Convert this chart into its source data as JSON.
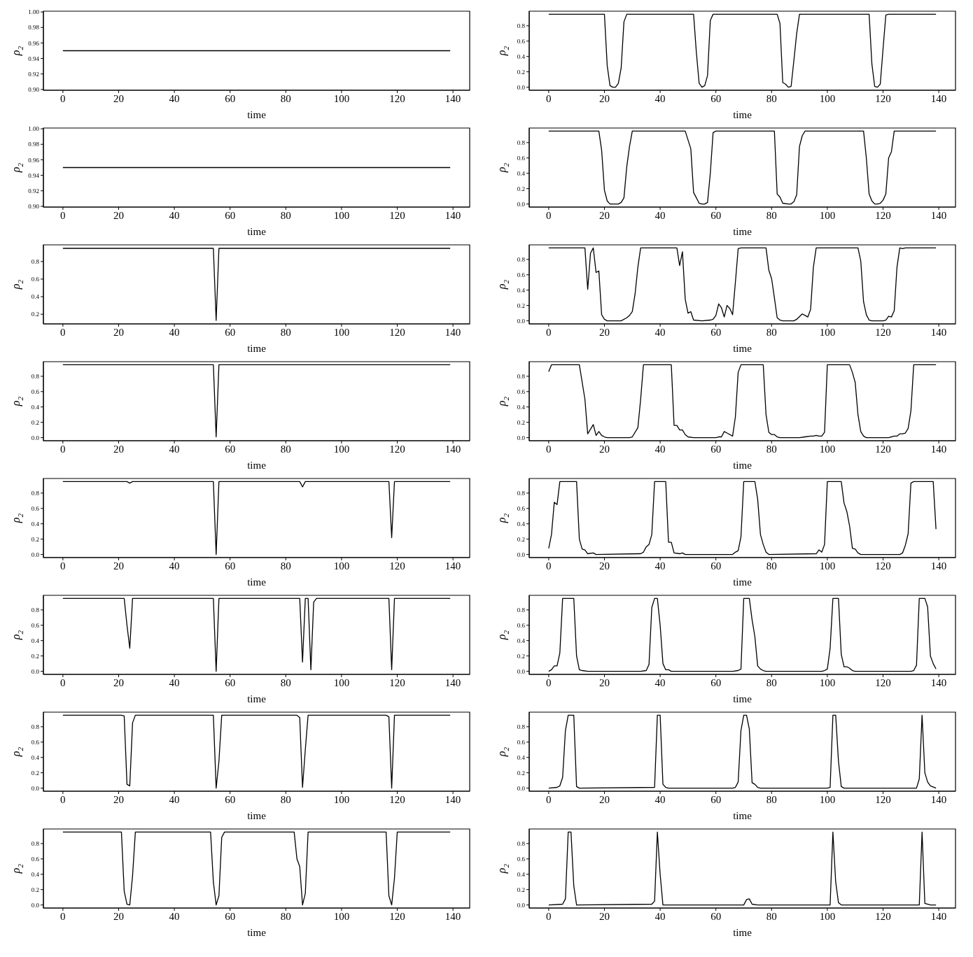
{
  "chart_data": [
    {
      "type": "line",
      "xlabel": "time",
      "ylabel": "ρ$_{2}$",
      "color": "#000000",
      "xlim": [
        -7,
        146
      ],
      "xticks": [
        0,
        20,
        40,
        60,
        80,
        100,
        120,
        140
      ],
      "ylim": [
        0.899,
        1.001
      ],
      "yticks": [
        {
          "value": 0.9,
          "label": "0.90"
        },
        0.92,
        0.94,
        0.96,
        0.98,
        {
          "value": 1,
          "label": "1.00"
        }
      ],
      "x": [
        0,
        139
      ],
      "values": [
        0.95,
        0.95
      ]
    },
    {
      "type": "line",
      "xlabel": "time",
      "ylabel": "ρ$_{2}$",
      "color": "#000000",
      "xlim": [
        -7,
        146
      ],
      "xticks": [
        0,
        20,
        40,
        60,
        80,
        100,
        120,
        140
      ],
      "ylim": [
        -0.04,
        0.99
      ],
      "yticks": [
        {
          "value": 0,
          "label": "0.0"
        },
        0.2,
        0.4,
        0.6,
        0.8
      ],
      "x": [
        0,
        20,
        21,
        22,
        23,
        24,
        25,
        26,
        27,
        28,
        52,
        53,
        54,
        55,
        56,
        57,
        58,
        59,
        82,
        83,
        84,
        85,
        86,
        87,
        88,
        89,
        90,
        115,
        116,
        117,
        118,
        119,
        120,
        121,
        122,
        139
      ],
      "values": [
        0.95,
        0.95,
        0.28,
        0.02,
        0.0,
        0.0,
        0.05,
        0.25,
        0.85,
        0.95,
        0.95,
        0.45,
        0.05,
        0.0,
        0.02,
        0.15,
        0.87,
        0.95,
        0.95,
        0.83,
        0.06,
        0.04,
        0.0,
        0.01,
        0.35,
        0.7,
        0.95,
        0.95,
        0.3,
        0.01,
        0.0,
        0.04,
        0.5,
        0.94,
        0.95,
        0.95
      ]
    },
    {
      "type": "line",
      "xlabel": "time",
      "ylabel": "ρ$_{2}$",
      "color": "#000000",
      "xlim": [
        -7,
        146
      ],
      "xticks": [
        0,
        20,
        40,
        60,
        80,
        100,
        120,
        140
      ],
      "ylim": [
        0.899,
        1.001
      ],
      "yticks": [
        {
          "value": 0.9,
          "label": "0.90"
        },
        0.92,
        0.94,
        0.96,
        0.98,
        {
          "value": 1,
          "label": "1.00"
        }
      ],
      "x": [
        0,
        139
      ],
      "values": [
        0.95,
        0.95
      ]
    },
    {
      "type": "line",
      "xlabel": "time",
      "ylabel": "ρ$_{2}$",
      "color": "#000000",
      "xlim": [
        -7,
        146
      ],
      "xticks": [
        0,
        20,
        40,
        60,
        80,
        100,
        120,
        140
      ],
      "ylim": [
        -0.04,
        0.99
      ],
      "yticks": [
        {
          "value": 0,
          "label": "0.0"
        },
        0.2,
        0.4,
        0.6,
        0.8
      ],
      "x": [
        0,
        18,
        19,
        20,
        21,
        22,
        25,
        26,
        27,
        28,
        29,
        30,
        49,
        51,
        52,
        54,
        55,
        56,
        57,
        58,
        59,
        60,
        81,
        82,
        83,
        84,
        86,
        87,
        88,
        89,
        90,
        91,
        92,
        113,
        114,
        115,
        116,
        117,
        118,
        119,
        120,
        121,
        122,
        123,
        124,
        139
      ],
      "values": [
        0.95,
        0.95,
        0.7,
        0.18,
        0.04,
        0.0,
        0.0,
        0.02,
        0.08,
        0.48,
        0.75,
        0.95,
        0.95,
        0.72,
        0.15,
        0.01,
        0.0,
        0.0,
        0.02,
        0.4,
        0.93,
        0.95,
        0.95,
        0.13,
        0.09,
        0.01,
        0.0,
        0.0,
        0.03,
        0.12,
        0.75,
        0.89,
        0.95,
        0.95,
        0.6,
        0.13,
        0.04,
        0.0,
        0.0,
        0.01,
        0.05,
        0.13,
        0.6,
        0.68,
        0.95,
        0.95
      ]
    },
    {
      "type": "line",
      "xlabel": "time",
      "ylabel": "ρ$_{2}$",
      "color": "#000000",
      "xlim": [
        -7,
        146
      ],
      "xticks": [
        0,
        20,
        40,
        60,
        80,
        100,
        120,
        140
      ],
      "ylim": [
        0.09,
        0.99
      ],
      "yticks": [
        0.2,
        0.4,
        0.6,
        0.8
      ],
      "x": [
        0,
        54,
        55,
        56,
        139
      ],
      "values": [
        0.95,
        0.95,
        0.13,
        0.95,
        0.95
      ]
    },
    {
      "type": "line",
      "xlabel": "time",
      "ylabel": "ρ$_{2}$",
      "color": "#000000",
      "xlim": [
        -7,
        146
      ],
      "xticks": [
        0,
        20,
        40,
        60,
        80,
        100,
        120,
        140
      ],
      "ylim": [
        -0.04,
        0.99
      ],
      "yticks": [
        {
          "value": 0,
          "label": "0.0"
        },
        0.2,
        0.4,
        0.6,
        0.8
      ],
      "x": [
        0,
        13,
        14,
        15,
        16,
        17,
        18,
        19,
        20,
        21,
        26,
        28,
        29,
        30,
        31,
        32,
        33,
        46,
        47,
        48,
        49,
        50,
        51,
        52,
        55,
        58,
        59,
        60,
        61,
        62,
        63,
        64,
        65,
        66,
        67,
        68,
        69,
        78,
        79,
        80,
        81,
        82,
        83,
        84,
        88,
        89,
        91,
        92,
        93,
        94,
        95,
        96,
        111,
        112,
        113,
        114,
        115,
        116,
        120,
        121,
        122,
        123,
        124,
        125,
        126,
        127,
        128,
        139
      ],
      "values": [
        0.95,
        0.95,
        0.41,
        0.88,
        0.95,
        0.63,
        0.65,
        0.08,
        0.02,
        0.0,
        0.0,
        0.04,
        0.07,
        0.12,
        0.35,
        0.7,
        0.95,
        0.95,
        0.72,
        0.9,
        0.28,
        0.1,
        0.12,
        0.01,
        0.0,
        0.01,
        0.02,
        0.07,
        0.22,
        0.17,
        0.05,
        0.2,
        0.16,
        0.08,
        0.5,
        0.94,
        0.95,
        0.95,
        0.66,
        0.55,
        0.3,
        0.04,
        0.01,
        0.0,
        0.0,
        0.02,
        0.09,
        0.07,
        0.05,
        0.15,
        0.7,
        0.95,
        0.95,
        0.78,
        0.25,
        0.08,
        0.01,
        0.0,
        0.0,
        0.01,
        0.06,
        0.05,
        0.13,
        0.7,
        0.95,
        0.94,
        0.95,
        0.95
      ]
    },
    {
      "type": "line",
      "xlabel": "time",
      "ylabel": "ρ$_{2}$",
      "color": "#000000",
      "xlim": [
        -7,
        146
      ],
      "xticks": [
        0,
        20,
        40,
        60,
        80,
        100,
        120,
        140
      ],
      "ylim": [
        -0.04,
        0.99
      ],
      "yticks": [
        {
          "value": 0,
          "label": "0.0"
        },
        0.2,
        0.4,
        0.6,
        0.8
      ],
      "x": [
        0,
        54,
        55,
        56,
        139
      ],
      "values": [
        0.95,
        0.95,
        0.01,
        0.95,
        0.95
      ]
    },
    {
      "type": "line",
      "xlabel": "time",
      "ylabel": "ρ$_{2}$",
      "color": "#000000",
      "xlim": [
        -7,
        146
      ],
      "xticks": [
        0,
        20,
        40,
        60,
        80,
        100,
        120,
        140
      ],
      "ylim": [
        -0.04,
        0.99
      ],
      "yticks": [
        {
          "value": 0,
          "label": "0.0"
        },
        0.2,
        0.4,
        0.6,
        0.8
      ],
      "x": [
        0,
        1,
        11,
        13,
        14,
        16,
        17,
        18,
        19,
        20,
        21,
        29,
        30,
        32,
        33,
        34,
        44,
        45,
        46,
        47,
        48,
        49,
        50,
        52,
        60,
        61,
        62,
        63,
        64,
        66,
        67,
        68,
        69,
        77,
        78,
        79,
        80,
        81,
        82,
        83,
        90,
        92,
        94,
        95,
        96,
        97,
        98,
        99,
        100,
        108,
        109,
        110,
        111,
        112,
        113,
        114,
        122,
        124,
        125,
        126,
        127,
        128,
        129,
        130,
        131,
        139
      ],
      "values": [
        0.86,
        0.95,
        0.95,
        0.5,
        0.05,
        0.17,
        0.03,
        0.08,
        0.03,
        0.01,
        0.0,
        0.0,
        0.01,
        0.13,
        0.5,
        0.95,
        0.95,
        0.16,
        0.16,
        0.1,
        0.1,
        0.04,
        0.01,
        0.0,
        0.0,
        0.01,
        0.01,
        0.08,
        0.06,
        0.02,
        0.27,
        0.85,
        0.95,
        0.95,
        0.3,
        0.07,
        0.04,
        0.04,
        0.01,
        0.0,
        0.0,
        0.01,
        0.02,
        0.02,
        0.03,
        0.02,
        0.02,
        0.07,
        0.95,
        0.95,
        0.85,
        0.72,
        0.3,
        0.08,
        0.02,
        0.0,
        0.0,
        0.02,
        0.02,
        0.05,
        0.05,
        0.06,
        0.12,
        0.35,
        0.95,
        0.95
      ]
    },
    {
      "type": "line",
      "xlabel": "time",
      "ylabel": "ρ$_{2}$",
      "color": "#000000",
      "xlim": [
        -7,
        146
      ],
      "xticks": [
        0,
        20,
        40,
        60,
        80,
        100,
        120,
        140
      ],
      "ylim": [
        -0.04,
        0.99
      ],
      "yticks": [
        {
          "value": 0,
          "label": "0.0"
        },
        0.2,
        0.4,
        0.6,
        0.8
      ],
      "x": [
        0,
        23,
        24,
        25,
        54,
        55,
        56,
        85,
        86,
        87,
        117,
        118,
        119,
        139
      ],
      "values": [
        0.95,
        0.95,
        0.93,
        0.95,
        0.95,
        0.0,
        0.95,
        0.95,
        0.88,
        0.95,
        0.95,
        0.22,
        0.95,
        0.95
      ]
    },
    {
      "type": "line",
      "xlabel": "time",
      "ylabel": "ρ$_{2}$",
      "color": "#000000",
      "xlim": [
        -7,
        146
      ],
      "xticks": [
        0,
        20,
        40,
        60,
        80,
        100,
        120,
        140
      ],
      "ylim": [
        -0.04,
        0.99
      ],
      "yticks": [
        {
          "value": 0,
          "label": "0.0"
        },
        0.2,
        0.4,
        0.6,
        0.8
      ],
      "x": [
        0,
        1,
        2,
        3,
        4,
        10,
        11,
        12,
        13,
        14,
        16,
        17,
        33,
        34,
        35,
        36,
        37,
        38,
        42,
        43,
        44,
        45,
        47,
        48,
        49,
        66,
        67,
        68,
        69,
        70,
        74,
        75,
        76,
        77,
        78,
        79,
        96,
        97,
        98,
        99,
        100,
        105,
        106,
        107,
        108,
        109,
        110,
        111,
        112,
        126,
        127,
        128,
        129,
        130,
        131,
        138,
        139
      ],
      "values": [
        0.08,
        0.26,
        0.68,
        0.65,
        0.95,
        0.95,
        0.2,
        0.07,
        0.06,
        0.01,
        0.02,
        0.0,
        0.01,
        0.03,
        0.1,
        0.13,
        0.26,
        0.95,
        0.95,
        0.16,
        0.16,
        0.02,
        0.01,
        0.02,
        0.0,
        0.0,
        0.03,
        0.05,
        0.23,
        0.95,
        0.95,
        0.72,
        0.26,
        0.13,
        0.03,
        0.0,
        0.01,
        0.06,
        0.03,
        0.13,
        0.95,
        0.95,
        0.67,
        0.56,
        0.37,
        0.08,
        0.07,
        0.02,
        0.0,
        0.0,
        0.02,
        0.12,
        0.27,
        0.93,
        0.95,
        0.95,
        0.33
      ]
    },
    {
      "type": "line",
      "xlabel": "time",
      "ylabel": "ρ$_{2}$",
      "color": "#000000",
      "xlim": [
        -7,
        146
      ],
      "xticks": [
        0,
        20,
        40,
        60,
        80,
        100,
        120,
        140
      ],
      "ylim": [
        -0.04,
        0.99
      ],
      "yticks": [
        {
          "value": 0,
          "label": "0.0"
        },
        0.2,
        0.4,
        0.6,
        0.8
      ],
      "x": [
        0,
        22,
        23,
        24,
        25,
        54,
        55,
        56,
        85,
        86,
        87,
        88,
        89,
        90,
        91,
        117,
        118,
        119,
        139
      ],
      "values": [
        0.95,
        0.95,
        0.6,
        0.3,
        0.95,
        0.95,
        0.0,
        0.95,
        0.95,
        0.12,
        0.95,
        0.95,
        0.02,
        0.9,
        0.95,
        0.95,
        0.02,
        0.95,
        0.95
      ]
    },
    {
      "type": "line",
      "xlabel": "time",
      "ylabel": "ρ$_{2}$",
      "color": "#000000",
      "xlim": [
        -7,
        146
      ],
      "xticks": [
        0,
        20,
        40,
        60,
        80,
        100,
        120,
        140
      ],
      "ylim": [
        -0.04,
        0.99
      ],
      "yticks": [
        {
          "value": 0,
          "label": "0.0"
        },
        0.2,
        0.4,
        0.6,
        0.8
      ],
      "x": [
        0,
        1,
        2,
        3,
        4,
        5,
        9,
        10,
        11,
        12,
        14,
        33,
        35,
        36,
        37,
        38,
        39,
        40,
        41,
        42,
        43,
        44,
        66,
        68,
        69,
        70,
        72,
        73,
        74,
        75,
        76,
        77,
        78,
        98,
        99,
        100,
        101,
        102,
        104,
        105,
        106,
        107,
        108,
        109,
        110,
        130,
        131,
        132,
        133,
        135,
        136,
        137,
        138,
        139
      ],
      "values": [
        0.0,
        0.02,
        0.07,
        0.07,
        0.24,
        0.95,
        0.95,
        0.2,
        0.02,
        0.01,
        0.0,
        0.0,
        0.01,
        0.09,
        0.83,
        0.95,
        0.95,
        0.6,
        0.1,
        0.02,
        0.02,
        0.0,
        0.0,
        0.01,
        0.03,
        0.95,
        0.95,
        0.67,
        0.45,
        0.07,
        0.03,
        0.01,
        0.0,
        0.0,
        0.01,
        0.03,
        0.3,
        0.95,
        0.95,
        0.22,
        0.06,
        0.06,
        0.04,
        0.01,
        0.0,
        0.0,
        0.01,
        0.08,
        0.95,
        0.95,
        0.84,
        0.2,
        0.1,
        0.03
      ]
    },
    {
      "type": "line",
      "xlabel": "time",
      "ylabel": "ρ$_{2}$",
      "color": "#000000",
      "xlim": [
        -7,
        146
      ],
      "xticks": [
        0,
        20,
        40,
        60,
        80,
        100,
        120,
        140
      ],
      "ylim": [
        -0.04,
        0.99
      ],
      "yticks": [
        {
          "value": 0,
          "label": "0.0"
        },
        0.2,
        0.4,
        0.6,
        0.8
      ],
      "x": [
        0,
        21,
        22,
        23,
        24,
        25,
        26,
        54,
        55,
        56,
        57,
        84,
        85,
        86,
        87,
        88,
        116,
        117,
        118,
        119,
        139
      ],
      "values": [
        0.95,
        0.95,
        0.94,
        0.05,
        0.03,
        0.85,
        0.95,
        0.95,
        0.0,
        0.35,
        0.95,
        0.95,
        0.92,
        0.01,
        0.5,
        0.95,
        0.95,
        0.93,
        0.0,
        0.95,
        0.95
      ]
    },
    {
      "type": "line",
      "xlabel": "time",
      "ylabel": "ρ$_{2}$",
      "color": "#000000",
      "xlim": [
        -7,
        146
      ],
      "xticks": [
        0,
        20,
        40,
        60,
        80,
        100,
        120,
        140
      ],
      "ylim": [
        -0.04,
        0.99
      ],
      "yticks": [
        {
          "value": 0,
          "label": "0.0"
        },
        0.2,
        0.4,
        0.6,
        0.8
      ],
      "x": [
        0,
        3,
        4,
        5,
        6,
        7,
        9,
        10,
        11,
        38,
        39,
        40,
        41,
        42,
        43,
        66,
        67,
        68,
        69,
        70,
        71,
        72,
        73,
        74,
        75,
        76,
        100,
        101,
        102,
        103,
        104,
        105,
        106,
        132,
        133,
        134,
        135,
        136,
        137,
        139
      ],
      "values": [
        0.0,
        0.01,
        0.03,
        0.14,
        0.75,
        0.95,
        0.95,
        0.02,
        0.0,
        0.01,
        0.95,
        0.95,
        0.05,
        0.01,
        0.0,
        0.0,
        0.01,
        0.08,
        0.75,
        0.95,
        0.95,
        0.77,
        0.07,
        0.05,
        0.01,
        0.0,
        0.0,
        0.01,
        0.95,
        0.95,
        0.35,
        0.02,
        0.0,
        0.0,
        0.12,
        0.95,
        0.2,
        0.08,
        0.03,
        0.0
      ]
    },
    {
      "type": "line",
      "xlabel": "time",
      "ylabel": "ρ$_{2}$",
      "color": "#000000",
      "xlim": [
        -7,
        146
      ],
      "xticks": [
        0,
        20,
        40,
        60,
        80,
        100,
        120,
        140
      ],
      "ylim": [
        -0.04,
        0.99
      ],
      "yticks": [
        {
          "value": 0,
          "label": "0.0"
        },
        0.2,
        0.4,
        0.6,
        0.8
      ],
      "x": [
        0,
        21,
        22,
        23,
        24,
        25,
        26,
        53,
        54,
        55,
        56,
        57,
        58,
        83,
        84,
        85,
        86,
        87,
        88,
        116,
        117,
        118,
        119,
        120,
        139
      ],
      "values": [
        0.95,
        0.95,
        0.18,
        0.01,
        0.0,
        0.38,
        0.95,
        0.95,
        0.3,
        0.0,
        0.12,
        0.88,
        0.95,
        0.95,
        0.6,
        0.5,
        0.0,
        0.15,
        0.95,
        0.95,
        0.12,
        0.0,
        0.35,
        0.95,
        0.95
      ]
    },
    {
      "type": "line",
      "xlabel": "time",
      "ylabel": "ρ$_{2}$",
      "color": "#000000",
      "xlim": [
        -7,
        146
      ],
      "xticks": [
        0,
        20,
        40,
        60,
        80,
        100,
        120,
        140
      ],
      "ylim": [
        -0.04,
        0.99
      ],
      "yticks": [
        {
          "value": 0,
          "label": "0.0"
        },
        0.2,
        0.4,
        0.6,
        0.8
      ],
      "x": [
        0,
        5,
        6,
        7,
        8,
        9,
        10,
        37,
        38,
        39,
        40,
        41,
        70,
        71,
        72,
        73,
        75,
        101,
        102,
        103,
        104,
        105,
        133,
        134,
        135,
        137,
        139
      ],
      "values": [
        0.0,
        0.01,
        0.08,
        0.95,
        0.95,
        0.25,
        0.0,
        0.01,
        0.05,
        0.95,
        0.4,
        0.0,
        0.0,
        0.07,
        0.08,
        0.01,
        0.0,
        0.0,
        0.95,
        0.3,
        0.03,
        0.0,
        0.0,
        0.95,
        0.02,
        0.0,
        0.0
      ]
    }
  ]
}
